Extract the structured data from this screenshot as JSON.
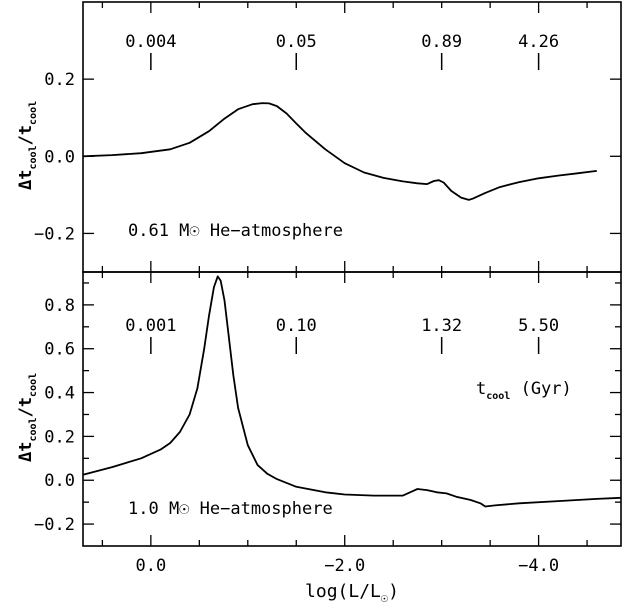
{
  "chart_data": [
    {
      "type": "line",
      "panel": "top",
      "ylabel": "Δt_cool/t_cool",
      "ylim": [
        -0.3,
        0.4
      ],
      "yticks": [
        0.2,
        0.0,
        -0.2
      ],
      "ytick_labels": [
        "0.2",
        "0.0",
        "−0.2"
      ],
      "xlim": [
        0.7,
        -4.85
      ],
      "annotation": "0.61 M☉  He−atmosphere",
      "age_markers": [
        {
          "logL": 0.0,
          "label": "0.004"
        },
        {
          "logL": -1.5,
          "label": "0.05"
        },
        {
          "logL": -3.0,
          "label": "0.89"
        },
        {
          "logL": -4.0,
          "label": "4.26"
        }
      ],
      "series": [
        {
          "x": [
            0.7,
            0.4,
            0.1,
            -0.2,
            -0.4,
            -0.6,
            -0.75,
            -0.9,
            -1.05,
            -1.15,
            -1.22,
            -1.3,
            -1.4,
            -1.5,
            -1.6,
            -1.8,
            -2.0,
            -2.2,
            -2.4,
            -2.6,
            -2.75,
            -2.85,
            -2.92,
            -2.97,
            -3.02,
            -3.1,
            -3.2,
            -3.28,
            -3.32,
            -3.45,
            -3.6,
            -3.8,
            -4.0,
            -4.2,
            -4.4,
            -4.6
          ],
          "y": [
            0.0,
            0.003,
            0.008,
            0.018,
            0.035,
            0.065,
            0.096,
            0.122,
            0.135,
            0.138,
            0.137,
            0.13,
            0.111,
            0.085,
            0.06,
            0.018,
            -0.018,
            -0.042,
            -0.056,
            -0.065,
            -0.07,
            -0.072,
            -0.064,
            -0.062,
            -0.068,
            -0.09,
            -0.107,
            -0.113,
            -0.11,
            -0.095,
            -0.08,
            -0.067,
            -0.057,
            -0.05,
            -0.044,
            -0.038
          ]
        }
      ]
    },
    {
      "type": "line",
      "panel": "bottom",
      "ylabel": "Δt_cool/t_cool",
      "ylim": [
        -0.3,
        0.95
      ],
      "yticks": [
        0.8,
        0.6,
        0.4,
        0.2,
        0.0,
        -0.2
      ],
      "ytick_labels": [
        "0.8",
        "0.6",
        "0.4",
        "0.2",
        "0.0",
        "−0.2"
      ],
      "minor_yticks": [
        0.9,
        0.7,
        0.5,
        0.3,
        0.1,
        -0.1
      ],
      "xlabel": "log(L/L☉)",
      "xlim": [
        0.7,
        -4.85
      ],
      "xticks": [
        0.0,
        -2.0,
        -4.0
      ],
      "xtick_labels": [
        "0.0",
        "−2.0",
        "−4.0"
      ],
      "minor_xticks": [
        0.5,
        -0.5,
        -1.0,
        -1.5,
        -2.5,
        -3.0,
        -3.5,
        -4.5
      ],
      "annotation": "1.0 M☉ He−atmosphere",
      "legend_label": "t_cool (Gyr)",
      "age_markers": [
        {
          "logL": 0.0,
          "label": "0.001"
        },
        {
          "logL": -1.5,
          "label": "0.10"
        },
        {
          "logL": -3.0,
          "label": "1.32"
        },
        {
          "logL": -4.0,
          "label": "5.50"
        }
      ],
      "series": [
        {
          "x": [
            0.7,
            0.4,
            0.1,
            -0.1,
            -0.2,
            -0.3,
            -0.4,
            -0.48,
            -0.55,
            -0.6,
            -0.65,
            -0.69,
            -0.72,
            -0.76,
            -0.8,
            -0.85,
            -0.9,
            -1.0,
            -1.1,
            -1.2,
            -1.3,
            -1.5,
            -1.8,
            -2.0,
            -2.3,
            -2.6,
            -2.7,
            -2.75,
            -2.85,
            -2.95,
            -3.05,
            -3.15,
            -3.3,
            -3.4,
            -3.45,
            -3.55,
            -3.8,
            -4.2,
            -4.6,
            -4.85
          ],
          "y": [
            0.025,
            0.06,
            0.1,
            0.14,
            0.17,
            0.22,
            0.3,
            0.42,
            0.6,
            0.75,
            0.88,
            0.93,
            0.91,
            0.82,
            0.67,
            0.48,
            0.33,
            0.16,
            0.07,
            0.03,
            0.005,
            -0.03,
            -0.055,
            -0.065,
            -0.07,
            -0.07,
            -0.05,
            -0.04,
            -0.045,
            -0.055,
            -0.06,
            -0.075,
            -0.09,
            -0.105,
            -0.12,
            -0.115,
            -0.105,
            -0.095,
            -0.085,
            -0.08
          ]
        }
      ]
    }
  ]
}
